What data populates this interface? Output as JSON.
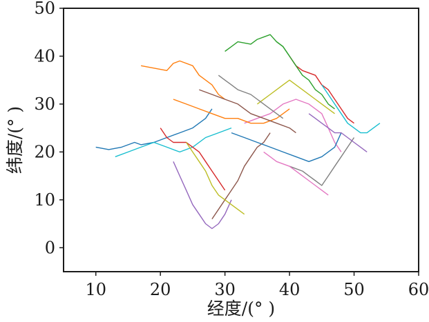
{
  "chart_data": {
    "type": "line",
    "title": "",
    "xlabel": "经度/(°  )",
    "ylabel": "纬度/(°  )",
    "xlim": [
      5,
      60
    ],
    "ylim": [
      -5,
      50
    ],
    "x_ticks": [
      "10",
      "20",
      "30",
      "40",
      "50",
      "60"
    ],
    "y_ticks": [
      "0",
      "10",
      "20",
      "30",
      "40",
      "50"
    ],
    "grid": false,
    "legend": "none",
    "palette": [
      "#1f77b4",
      "#ff7f0e",
      "#2ca02c",
      "#d62728",
      "#9467bd",
      "#8c564b",
      "#e377c2",
      "#7f7f7f",
      "#bcbd22",
      "#17becf"
    ],
    "note_series": "dense overlapping trajectory lines; representative tracks estimated from the plot",
    "series": [
      {
        "color": "#1f77b4",
        "x": [
          10,
          12,
          14,
          16,
          17,
          19,
          21,
          23,
          25,
          27,
          28
        ],
        "y": [
          21,
          20.5,
          21,
          22,
          21.5,
          22,
          23,
          24,
          25,
          27,
          29
        ]
      },
      {
        "color": "#ff7f0e",
        "x": [
          17,
          19,
          21,
          22,
          23,
          25,
          26,
          28,
          29,
          30
        ],
        "y": [
          38,
          37.5,
          37,
          38.5,
          39,
          38,
          36,
          34,
          32,
          31
        ]
      },
      {
        "color": "#2ca02c",
        "x": [
          30,
          31,
          32,
          34,
          35,
          36,
          37,
          38,
          39,
          40
        ],
        "y": [
          41,
          42,
          43,
          42.5,
          43.5,
          44,
          44.5,
          43,
          42,
          40
        ]
      },
      {
        "color": "#d62728",
        "x": [
          40,
          41,
          42,
          44,
          45,
          46,
          47,
          48,
          49,
          50
        ],
        "y": [
          40,
          38,
          37,
          36,
          34,
          33,
          31,
          29,
          27,
          26
        ]
      },
      {
        "color": "#9467bd",
        "x": [
          22,
          23,
          24,
          25,
          26,
          27,
          28,
          29,
          30,
          31
        ],
        "y": [
          18,
          15,
          12,
          9,
          7,
          5,
          4,
          5,
          7,
          10
        ]
      },
      {
        "color": "#8c564b",
        "x": [
          28,
          29,
          30,
          31,
          32,
          33,
          34,
          35,
          36,
          37
        ],
        "y": [
          6,
          8,
          10,
          12,
          14,
          17,
          19,
          21,
          22,
          24
        ]
      },
      {
        "color": "#e377c2",
        "x": [
          33,
          35,
          37,
          39,
          41,
          43,
          45,
          46,
          47,
          48
        ],
        "y": [
          26,
          27,
          28,
          30,
          31,
          30,
          28,
          25,
          22,
          20
        ]
      },
      {
        "color": "#7f7f7f",
        "x": [
          40,
          42,
          43,
          44,
          45,
          46,
          47,
          48,
          49,
          50
        ],
        "y": [
          17,
          16,
          15,
          14,
          13,
          15,
          17,
          19,
          21,
          23
        ]
      },
      {
        "color": "#bcbd22",
        "x": [
          35,
          37,
          38,
          39,
          40,
          42,
          44,
          45,
          46,
          47
        ],
        "y": [
          30,
          32,
          33,
          34,
          35,
          33,
          31,
          30,
          29,
          28
        ]
      },
      {
        "color": "#17becf",
        "x": [
          13,
          15,
          17,
          19,
          21,
          23,
          25,
          27,
          29,
          31
        ],
        "y": [
          19,
          20,
          21,
          22,
          21,
          20,
          21,
          23,
          24,
          25
        ]
      },
      {
        "color": "#1f77b4",
        "x": [
          31,
          33,
          35,
          37,
          39,
          41,
          43,
          45,
          47,
          48
        ],
        "y": [
          24,
          23,
          22,
          21,
          20,
          19,
          18,
          19,
          21,
          24
        ]
      },
      {
        "color": "#ff7f0e",
        "x": [
          22,
          24,
          26,
          28,
          30,
          32,
          34,
          36,
          38,
          40
        ],
        "y": [
          31,
          30,
          29,
          28,
          27,
          27,
          26,
          26,
          27,
          29
        ]
      },
      {
        "color": "#2ca02c",
        "x": [
          38,
          39,
          40,
          41,
          42,
          43,
          44,
          45,
          46,
          47
        ],
        "y": [
          43,
          42,
          40,
          38,
          36,
          35,
          33,
          32,
          30,
          29
        ]
      },
      {
        "color": "#d62728",
        "x": [
          20,
          21,
          22,
          24,
          25,
          26,
          27,
          28,
          29,
          30
        ],
        "y": [
          25,
          23,
          22,
          22,
          21,
          20,
          18,
          16,
          14,
          12
        ]
      },
      {
        "color": "#9467bd",
        "x": [
          43,
          44,
          45,
          46,
          47,
          48,
          49,
          50,
          51,
          52
        ],
        "y": [
          28,
          27,
          26,
          25,
          24,
          24,
          23,
          22,
          21,
          20
        ]
      },
      {
        "color": "#8c564b",
        "x": [
          26,
          28,
          30,
          32,
          33,
          34,
          36,
          38,
          40,
          41
        ],
        "y": [
          33,
          32,
          31,
          30,
          29,
          28,
          27,
          26,
          25,
          24
        ]
      },
      {
        "color": "#e377c2",
        "x": [
          36,
          37,
          38,
          40,
          41,
          42,
          43,
          44,
          45,
          46
        ],
        "y": [
          20,
          19,
          18,
          17,
          16,
          15,
          14,
          13,
          12,
          11
        ]
      },
      {
        "color": "#7f7f7f",
        "x": [
          29,
          30,
          31,
          32,
          34,
          35,
          36,
          37,
          38,
          39
        ],
        "y": [
          36,
          35,
          34,
          33,
          32,
          31,
          30,
          29,
          28,
          27
        ]
      },
      {
        "color": "#bcbd22",
        "x": [
          24,
          25,
          26,
          27,
          28,
          29,
          30,
          31,
          32,
          33
        ],
        "y": [
          22,
          20,
          18,
          16,
          13,
          11,
          10,
          9,
          8,
          7
        ]
      },
      {
        "color": "#17becf",
        "x": [
          45,
          46,
          47,
          48,
          49,
          50,
          51,
          52,
          53,
          54
        ],
        "y": [
          34,
          32,
          30,
          28,
          26,
          25,
          24,
          24,
          25,
          26
        ]
      }
    ]
  }
}
